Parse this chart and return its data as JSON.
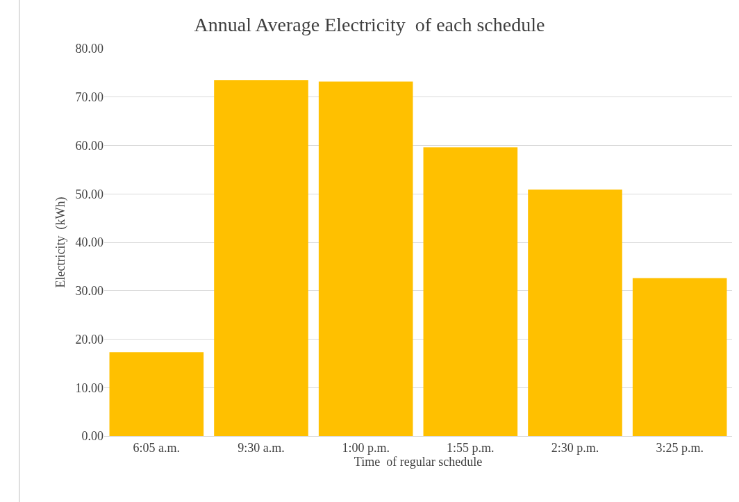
{
  "chart_data": {
    "type": "bar",
    "title": "Annual Average Electricity  of each schedule",
    "xlabel": "Time  of regular schedule",
    "ylabel": "Electricity  (kWh)",
    "categories": [
      "6:05 a.m.",
      "9:30 a.m.",
      "1:00 p.m.",
      "1:55 p.m.",
      "2:30 p.m.",
      "3:25 p.m."
    ],
    "values": [
      17.3,
      73.5,
      73.2,
      59.6,
      50.9,
      32.6
    ],
    "color": "#ffc000",
    "ylim": [
      0,
      80
    ],
    "yticks": [
      {
        "value": 0,
        "label": "0.00"
      },
      {
        "value": 10,
        "label": "10.00"
      },
      {
        "value": 20,
        "label": "20.00"
      },
      {
        "value": 30,
        "label": "30.00"
      },
      {
        "value": 40,
        "label": "40.00"
      },
      {
        "value": 50,
        "label": "50.00"
      },
      {
        "value": 60,
        "label": "60.00"
      },
      {
        "value": 70,
        "label": "70.00"
      },
      {
        "value": 80,
        "label": "80.00"
      }
    ],
    "grid": "y"
  }
}
